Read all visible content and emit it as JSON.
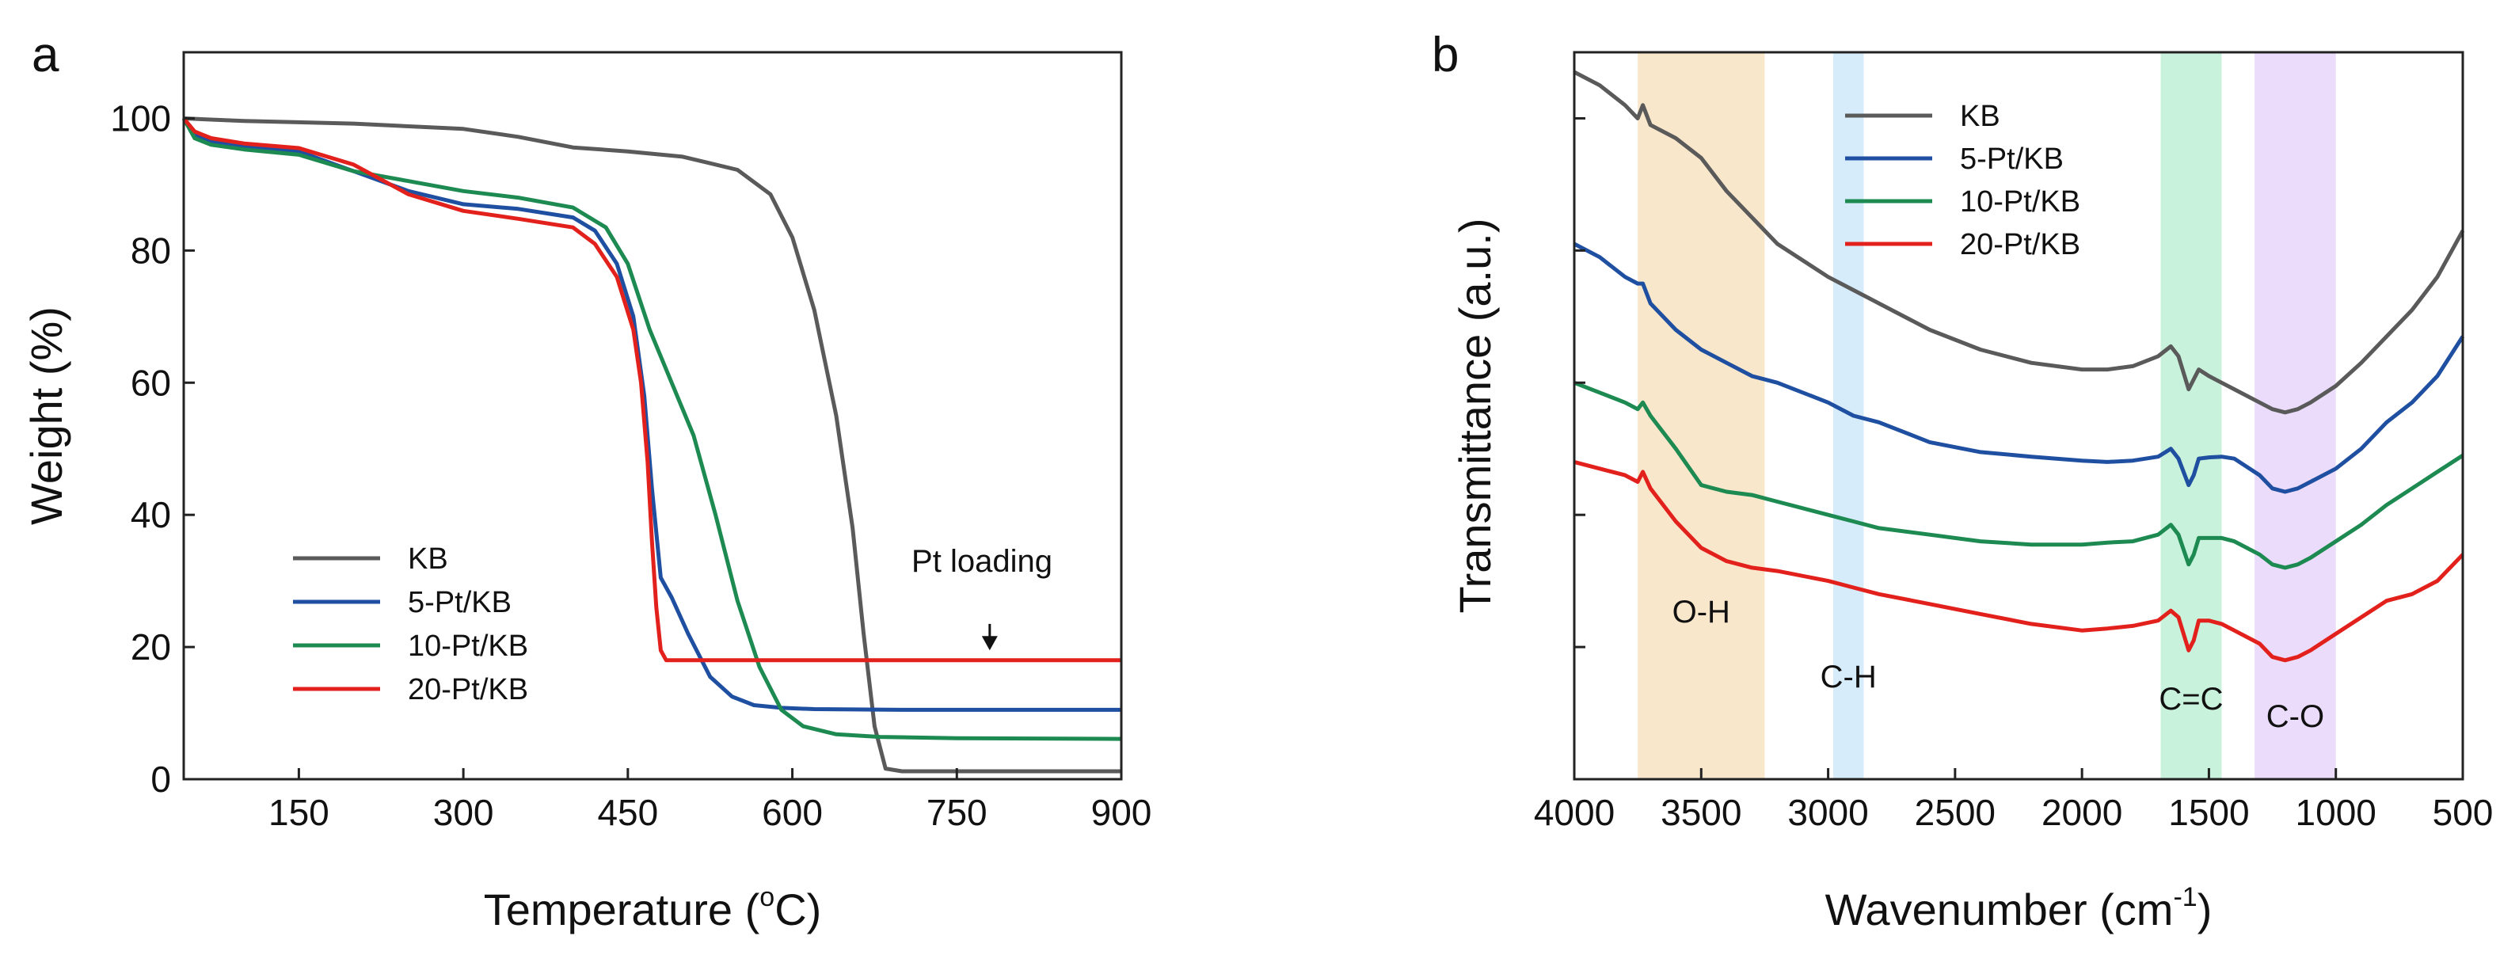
{
  "chart_data": [
    {
      "panel": "a",
      "type": "line",
      "xlabel": "Temperature (°C)",
      "xlabel_main": "Temperature (",
      "xlabel_sup": "o",
      "xlabel_end": "C)",
      "ylabel": "Weight (%)",
      "xlim": [
        45,
        900
      ],
      "ylim": [
        0,
        110
      ],
      "xticks": [
        150,
        300,
        450,
        600,
        750,
        900
      ],
      "yticks": [
        0,
        20,
        40,
        60,
        80,
        100
      ],
      "legend": {
        "placement": "left-bottom"
      },
      "annotation": {
        "text": "Pt loading",
        "x": 780,
        "arrow_from_y": 23.5,
        "arrow_to_y": 19.5
      },
      "series": [
        {
          "name": "KB",
          "color": "#5a5a5a",
          "x": [
            45,
            100,
            200,
            300,
            350,
            400,
            450,
            500,
            550,
            580,
            600,
            620,
            640,
            655,
            665,
            675,
            685,
            700,
            750,
            800,
            900
          ],
          "y": [
            100,
            99.6,
            99.2,
            98.4,
            97.2,
            95.6,
            95.0,
            94.2,
            92.2,
            88.5,
            82,
            71,
            55,
            38,
            22,
            8,
            1.6,
            1.2,
            1.2,
            1.2,
            1.2
          ]
        },
        {
          "name": "5-Pt/KB",
          "color": "#1f4fa0",
          "x": [
            45,
            55,
            70,
            100,
            150,
            200,
            250,
            300,
            350,
            400,
            420,
            440,
            455,
            465,
            472,
            480,
            490,
            505,
            525,
            545,
            565,
            590,
            620,
            700,
            800,
            900
          ],
          "y": [
            100,
            97.5,
            96.5,
            95.8,
            95.0,
            92.0,
            89.0,
            87.0,
            86.3,
            85.0,
            83.0,
            78.0,
            70.0,
            58.0,
            44.0,
            30.5,
            27.5,
            22.0,
            15.5,
            12.5,
            11.2,
            10.8,
            10.6,
            10.5,
            10.5,
            10.5
          ]
        },
        {
          "name": "10-Pt/KB",
          "color": "#1d8a52",
          "x": [
            45,
            55,
            70,
            100,
            150,
            200,
            250,
            300,
            350,
            400,
            430,
            450,
            470,
            490,
            510,
            530,
            550,
            570,
            590,
            610,
            640,
            680,
            750,
            900
          ],
          "y": [
            100,
            97.0,
            96.0,
            95.3,
            94.5,
            92.0,
            90.5,
            89.0,
            88.0,
            86.5,
            83.5,
            78.0,
            68.0,
            60.0,
            52.0,
            40.0,
            27.0,
            17.0,
            10.5,
            8.0,
            6.8,
            6.4,
            6.2,
            6.1
          ]
        },
        {
          "name": "20-Pt/KB",
          "color": "#e3211c",
          "x": [
            45,
            55,
            70,
            100,
            150,
            200,
            250,
            300,
            350,
            400,
            420,
            440,
            455,
            462,
            468,
            472,
            476,
            480,
            485,
            500,
            600,
            750,
            900
          ],
          "y": [
            100,
            98.0,
            97.0,
            96.2,
            95.5,
            93.0,
            88.5,
            86.0,
            84.8,
            83.5,
            81.0,
            76.0,
            68.0,
            60.0,
            48.0,
            36.0,
            26.0,
            19.5,
            18.0,
            18.0,
            18.0,
            18.0,
            18.0
          ]
        }
      ]
    },
    {
      "panel": "b",
      "type": "line",
      "xlabel": "Wavenumber (cm-1)",
      "xlabel_main": "Wavenumber (cm",
      "xlabel_sup": "-1",
      "xlabel_end": ")",
      "ylabel": "Transmittance (a.u.)",
      "xlim": [
        4000,
        500
      ],
      "ylim": [
        0,
        110
      ],
      "xticks": [
        4000,
        3500,
        3000,
        2500,
        2000,
        1500,
        1000,
        500
      ],
      "yticks_unlabeled": [
        20,
        40,
        60,
        80,
        100
      ],
      "legend": {
        "placement": "top-center"
      },
      "bands": [
        {
          "label": "O-H",
          "from": 3750,
          "to": 3250,
          "color": "#f9e7cc"
        },
        {
          "label": "C-H",
          "from": 2980,
          "to": 2860,
          "color": "#d7ecfb"
        },
        {
          "label": "C=C",
          "from": 1690,
          "to": 1450,
          "color": "#c9f2dc"
        },
        {
          "label": "C-O",
          "from": 1320,
          "to": 1000,
          "color": "#ecdcfb"
        }
      ],
      "series": [
        {
          "name": "KB",
          "color": "#5a5a5a",
          "x": [
            4000,
            3900,
            3800,
            3750,
            3730,
            3700,
            3600,
            3500,
            3400,
            3300,
            3200,
            3000,
            2900,
            2800,
            2600,
            2400,
            2200,
            2000,
            1900,
            1800,
            1700,
            1650,
            1620,
            1580,
            1560,
            1540,
            1500,
            1450,
            1400,
            1300,
            1250,
            1200,
            1150,
            1100,
            1000,
            900,
            800,
            700,
            600,
            500
          ],
          "y": [
            107,
            105,
            102,
            100,
            102,
            99,
            97,
            94,
            89,
            85,
            81,
            76,
            74,
            72,
            68,
            65,
            63,
            62,
            62,
            62.5,
            64,
            65.5,
            64,
            59,
            60.5,
            62,
            61,
            60,
            59,
            57,
            56,
            55.5,
            56,
            57,
            59.5,
            63,
            67,
            71,
            76,
            83
          ]
        },
        {
          "name": "5-Pt/KB",
          "color": "#1f4fa0",
          "x": [
            4000,
            3900,
            3800,
            3750,
            3730,
            3700,
            3600,
            3500,
            3400,
            3300,
            3200,
            3000,
            2900,
            2800,
            2600,
            2400,
            2200,
            2000,
            1900,
            1800,
            1700,
            1650,
            1620,
            1580,
            1560,
            1540,
            1500,
            1450,
            1400,
            1300,
            1250,
            1200,
            1150,
            1100,
            1000,
            900,
            800,
            700,
            600,
            500
          ],
          "y": [
            81,
            79,
            76,
            75,
            75,
            72,
            68,
            65,
            63,
            61,
            60,
            57,
            55,
            54,
            51,
            49.5,
            48.8,
            48.2,
            48,
            48.2,
            48.8,
            50,
            48.5,
            44.5,
            46,
            48.5,
            48.7,
            48.8,
            48.5,
            46,
            44,
            43.5,
            44,
            45,
            47,
            50,
            54,
            57,
            61,
            67
          ]
        },
        {
          "name": "10-Pt/KB",
          "color": "#1d8a52",
          "x": [
            4000,
            3900,
            3800,
            3750,
            3730,
            3700,
            3600,
            3500,
            3400,
            3300,
            3200,
            3000,
            2900,
            2800,
            2600,
            2400,
            2200,
            2000,
            1900,
            1800,
            1700,
            1650,
            1620,
            1580,
            1560,
            1540,
            1500,
            1450,
            1400,
            1300,
            1250,
            1200,
            1150,
            1100,
            1000,
            900,
            800,
            700,
            600,
            500
          ],
          "y": [
            60,
            58.5,
            57,
            56,
            57,
            55,
            50,
            44.5,
            43.5,
            43,
            42,
            40,
            39,
            38,
            37,
            36,
            35.5,
            35.5,
            35.8,
            36,
            37,
            38.5,
            37,
            32.5,
            34,
            36.5,
            36.5,
            36.5,
            36,
            34,
            32.5,
            32,
            32.5,
            33.5,
            36,
            38.5,
            41.5,
            44,
            46.5,
            49
          ]
        },
        {
          "name": "20-Pt/KB",
          "color": "#e3211c",
          "x": [
            4000,
            3900,
            3800,
            3750,
            3730,
            3700,
            3600,
            3500,
            3400,
            3300,
            3200,
            3000,
            2900,
            2800,
            2600,
            2400,
            2200,
            2000,
            1900,
            1800,
            1700,
            1650,
            1620,
            1580,
            1560,
            1540,
            1500,
            1450,
            1400,
            1300,
            1250,
            1200,
            1150,
            1100,
            1000,
            900,
            800,
            700,
            600,
            500
          ],
          "y": [
            48,
            47,
            46,
            45,
            46.5,
            44,
            39,
            35,
            33,
            32,
            31.5,
            30,
            29,
            28,
            26.5,
            25,
            23.5,
            22.5,
            22.8,
            23.2,
            24,
            25.5,
            24.5,
            19.5,
            21,
            24,
            24,
            23.5,
            22.5,
            20.5,
            18.5,
            18,
            18.5,
            19.5,
            22,
            24.5,
            27,
            28,
            30,
            34
          ]
        }
      ]
    }
  ]
}
